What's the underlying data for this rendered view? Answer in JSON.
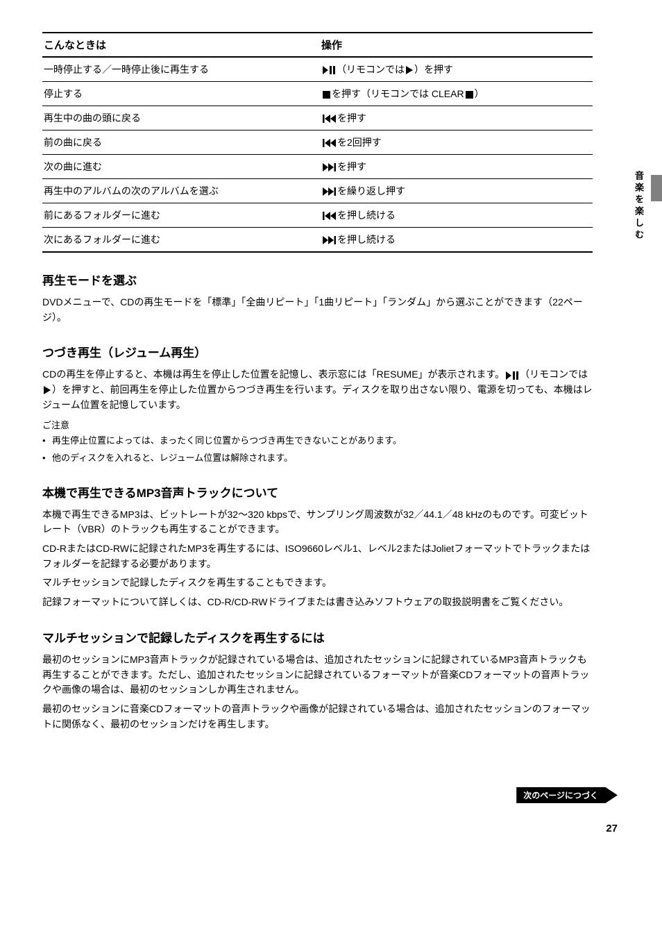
{
  "table": {
    "headers": [
      "こんなときは",
      "操作"
    ],
    "rows": [
      {
        "left": "一時停止する／一時停止後に再生する",
        "right_pre": "",
        "icon1": "play-pause",
        "mid": "（リモコンでは",
        "icon2": "play",
        "mid2": "）",
        "right_post": "を押す"
      },
      {
        "left": "停止する",
        "right_pre": "",
        "icon1": "stop",
        "mid": "を押す（リモコンでは CLEAR",
        "icon2": "stop",
        "mid2": "）",
        "right_post": ""
      },
      {
        "left": "再生中の曲の頭に戻る",
        "right_pre": "",
        "icon1": "prev",
        "mid": "を押す",
        "icon2": "",
        "mid2": "",
        "right_post": ""
      },
      {
        "left": "前の曲に戻る",
        "right_pre": "",
        "icon1": "prev",
        "mid": "を2回押す",
        "icon2": "",
        "mid2": "",
        "right_post": ""
      },
      {
        "left": "次の曲に進む",
        "right_pre": "",
        "icon1": "next",
        "mid": "を押す",
        "icon2": "",
        "mid2": "",
        "right_post": ""
      },
      {
        "left": "再生中のアルバムの次のアルバムを選ぶ",
        "right_pre": "",
        "icon1": "next",
        "mid": "を繰り返し押す",
        "icon2": "",
        "mid2": "",
        "right_post": ""
      },
      {
        "left": "前にあるフォルダーに進む",
        "right_pre": "",
        "icon1": "prev",
        "mid": "を押し続ける",
        "icon2": "",
        "mid2": "",
        "right_post": ""
      },
      {
        "left": "次にあるフォルダーに進む",
        "right_pre": "",
        "icon1": "next",
        "mid": "を押し続ける",
        "icon2": "",
        "mid2": "",
        "right_post": ""
      }
    ]
  },
  "sections": [
    {
      "title": "再生モードを選ぶ",
      "body": "DVDメニューで、CDの再生モードを「標準」「全曲リピート」「1曲リピート」「ランダム」から選ぶことができます（22ページ）。"
    },
    {
      "title": "つづき再生（レジューム再生）",
      "body_html": "CDの再生を停止すると、本機は再生を停止した位置を記憶し、表示窓には「RESUME」が表示されます。{ICON:play-pause}（リモコンでは{ICON:play}）を押すと、前回再生を停止した位置からつづき再生を行います。ディスクを取り出さない限り、電源を切っても、本機はレジューム位置を記憶しています。",
      "notes_label": "ご注意",
      "notes": [
        "再生停止位置によっては、まったく同じ位置からつづき再生できないことがあります。",
        "他のディスクを入れると、レジューム位置は解除されます。"
      ]
    },
    {
      "title": "本機で再生できるMP3音声トラックについて",
      "body": "本機で再生できるMP3は、ビットレートが32～320 kbpsで、サンプリング周波数が32／44.1／48 kHzのものです。可変ビットレート（VBR）のトラックも再生することができます。\nCD-RまたはCD-RWに記録されたMP3を再生するには、ISO9660レベル1、レベル2またはJolietフォーマットでトラックまたはフォルダーを記録する必要があります。\nマルチセッションで記録したディスクを再生することもできます。\n記録フォーマットについて詳しくは、CD-R/CD-RWドライブまたは書き込みソフトウェアの取扱説明書をご覧ください。"
    },
    {
      "title": "マルチセッションで記録したディスクを再生するには",
      "body": "最初のセッションにMP3音声トラックが記録されている場合は、追加されたセッションに記録されているMP3音声トラックも再生することができます。ただし、追加されたセッションに記録されているフォーマットが音楽CDフォーマットの音声トラックや画像の場合は、最初のセッションしか再生されません。\n最初のセッションに音楽CDフォーマットの音声トラックや画像が記録されている場合は、追加されたセッションのフォーマットに関係なく、最初のセッションだけを再生します。"
    }
  ],
  "side_label": "音楽を楽しむ",
  "footer_badge": "次のページにつづく",
  "page_number": "27",
  "colors": {
    "text": "#000000",
    "background": "#ffffff",
    "tab": "#808080"
  }
}
